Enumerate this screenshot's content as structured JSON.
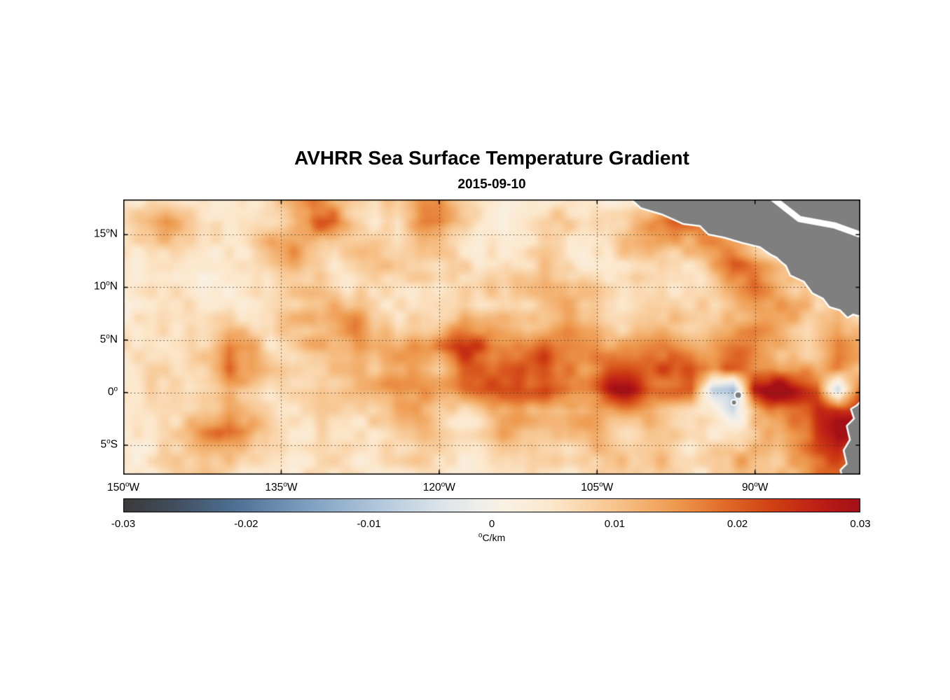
{
  "chart_data": {
    "type": "heatmap",
    "title": "AVHRR Sea Surface Temperature Gradient",
    "subtitle": "2015-09-10",
    "deg_sup": "o",
    "lon_range": [
      -150,
      -80
    ],
    "lat_range": [
      -7.8,
      18.35
    ],
    "xticks": [
      {
        "lon": -150,
        "num": "150",
        "dir": "W"
      },
      {
        "lon": -135,
        "num": "135",
        "dir": "W"
      },
      {
        "lon": -120,
        "num": "120",
        "dir": "W"
      },
      {
        "lon": -105,
        "num": "105",
        "dir": "W"
      },
      {
        "lon": -90,
        "num": "90",
        "dir": "W"
      }
    ],
    "yticks": [
      {
        "lat": 15,
        "num": "15",
        "dir": "N"
      },
      {
        "lat": 10,
        "num": "10",
        "dir": "N"
      },
      {
        "lat": 5,
        "num": "5",
        "dir": "N"
      },
      {
        "lat": 0,
        "num": "0",
        "dir": ""
      },
      {
        "lat": -5,
        "num": "5",
        "dir": "S"
      }
    ],
    "grid_lats": [
      15,
      10,
      5,
      0,
      -5
    ],
    "grid_lons": [
      -135,
      -120,
      -105,
      -90
    ],
    "colorbar": {
      "min": -0.03,
      "max": 0.03,
      "unit_sup": "o",
      "unit_text": "C/km",
      "ticks": [
        {
          "v": -0.03,
          "label": "-0.03"
        },
        {
          "v": -0.02,
          "label": "-0.02"
        },
        {
          "v": -0.01,
          "label": "-0.01"
        },
        {
          "v": 0,
          "label": "0"
        },
        {
          "v": 0.01,
          "label": "0.01"
        },
        {
          "v": 0.02,
          "label": "0.02"
        },
        {
          "v": 0.03,
          "label": "0.03"
        }
      ],
      "colormap": [
        {
          "v": -0.03,
          "c": "#3a3a3a"
        },
        {
          "v": -0.026,
          "c": "#414d5c"
        },
        {
          "v": -0.021,
          "c": "#4e6f93"
        },
        {
          "v": -0.015,
          "c": "#7f9fc0"
        },
        {
          "v": -0.009,
          "c": "#b3c9dd"
        },
        {
          "v": -0.004,
          "c": "#dde4e9"
        },
        {
          "v": -0.001,
          "c": "#efeeea"
        },
        {
          "v": 0.001,
          "c": "#f9f1e4"
        },
        {
          "v": 0.005,
          "c": "#fce7cb"
        },
        {
          "v": 0.01,
          "c": "#f7c48d"
        },
        {
          "v": 0.015,
          "c": "#ee9a4f"
        },
        {
          "v": 0.019,
          "c": "#e06a28"
        },
        {
          "v": 0.023,
          "c": "#cf3f14"
        },
        {
          "v": 0.027,
          "c": "#bb1c16"
        },
        {
          "v": 0.03,
          "c": "#a31016"
        }
      ]
    },
    "values_scale": 0.001,
    "grid": {
      "ncols": 36,
      "nrows": 14,
      "lon0": -150,
      "lon1": -80,
      "lat0": 18.35,
      "lat1": -7.8,
      "values": [
        [
          4,
          4,
          5,
          6,
          8,
          6,
          5,
          6,
          10,
          14,
          12,
          8,
          6,
          10,
          16,
          14,
          8,
          5,
          4,
          4,
          5,
          6,
          5,
          4,
          6,
          8,
          10,
          12,
          10,
          8,
          10,
          14,
          10,
          8,
          16,
          22
        ],
        [
          6,
          10,
          14,
          8,
          5,
          8,
          6,
          5,
          8,
          16,
          18,
          10,
          6,
          8,
          18,
          20,
          12,
          6,
          5,
          6,
          8,
          10,
          8,
          6,
          8,
          12,
          18,
          22,
          16,
          12,
          10,
          8,
          12,
          10,
          20,
          18
        ],
        [
          5,
          8,
          10,
          6,
          5,
          6,
          8,
          10,
          12,
          10,
          8,
          12,
          14,
          10,
          16,
          12,
          8,
          6,
          5,
          5,
          6,
          8,
          6,
          5,
          10,
          14,
          12,
          16,
          20,
          14,
          10,
          8,
          14,
          18,
          16,
          12
        ],
        [
          4,
          5,
          6,
          5,
          4,
          5,
          6,
          12,
          14,
          10,
          6,
          8,
          10,
          8,
          10,
          8,
          6,
          5,
          4,
          6,
          10,
          8,
          5,
          4,
          6,
          10,
          8,
          10,
          14,
          18,
          14,
          10,
          8,
          12,
          20,
          10
        ],
        [
          4,
          5,
          8,
          6,
          4,
          4,
          5,
          8,
          10,
          8,
          5,
          6,
          8,
          6,
          6,
          5,
          6,
          8,
          6,
          8,
          12,
          16,
          14,
          6,
          5,
          8,
          6,
          8,
          10,
          12,
          16,
          12,
          8,
          10,
          16,
          8
        ],
        [
          5,
          6,
          6,
          8,
          6,
          5,
          6,
          6,
          8,
          10,
          12,
          8,
          6,
          5,
          8,
          10,
          8,
          6,
          8,
          6,
          8,
          10,
          8,
          6,
          8,
          10,
          8,
          6,
          8,
          10,
          12,
          10,
          12,
          8,
          10,
          6
        ],
        [
          6,
          8,
          6,
          6,
          8,
          10,
          8,
          6,
          10,
          12,
          10,
          14,
          10,
          8,
          12,
          14,
          16,
          14,
          10,
          8,
          10,
          12,
          10,
          8,
          10,
          12,
          10,
          8,
          10,
          12,
          14,
          12,
          10,
          8,
          12,
          8
        ],
        [
          8,
          10,
          8,
          6,
          10,
          22,
          18,
          8,
          10,
          12,
          14,
          18,
          16,
          14,
          18,
          20,
          22,
          20,
          18,
          16,
          18,
          16,
          14,
          12,
          14,
          16,
          18,
          16,
          14,
          16,
          18,
          16,
          12,
          10,
          14,
          10
        ],
        [
          6,
          8,
          10,
          8,
          12,
          20,
          16,
          10,
          8,
          10,
          12,
          14,
          12,
          16,
          14,
          12,
          16,
          18,
          20,
          22,
          20,
          18,
          16,
          18,
          20,
          22,
          24,
          22,
          18,
          16,
          14,
          18,
          16,
          14,
          18,
          12
        ],
        [
          5,
          6,
          8,
          6,
          8,
          10,
          8,
          6,
          8,
          10,
          12,
          14,
          16,
          18,
          16,
          14,
          18,
          22,
          24,
          22,
          24,
          26,
          24,
          26,
          28,
          26,
          24,
          22,
          -6,
          -10,
          24,
          28,
          26,
          22,
          -8,
          26
        ],
        [
          4,
          5,
          6,
          8,
          10,
          12,
          8,
          5,
          6,
          8,
          10,
          8,
          10,
          12,
          14,
          10,
          8,
          10,
          12,
          14,
          12,
          10,
          12,
          14,
          16,
          14,
          12,
          10,
          8,
          -6,
          10,
          16,
          20,
          26,
          28,
          30
        ],
        [
          4,
          5,
          8,
          10,
          14,
          16,
          12,
          6,
          5,
          6,
          8,
          6,
          6,
          8,
          10,
          8,
          6,
          8,
          10,
          8,
          10,
          8,
          10,
          12,
          10,
          12,
          10,
          8,
          6,
          8,
          12,
          14,
          18,
          24,
          30,
          26
        ],
        [
          4,
          4,
          6,
          8,
          10,
          12,
          8,
          5,
          4,
          5,
          6,
          5,
          5,
          6,
          8,
          6,
          5,
          6,
          8,
          6,
          8,
          6,
          8,
          10,
          8,
          10,
          8,
          6,
          8,
          10,
          12,
          10,
          14,
          20,
          26,
          22
        ],
        [
          4,
          4,
          5,
          6,
          8,
          6,
          5,
          4,
          4,
          5,
          5,
          4,
          4,
          5,
          6,
          5,
          4,
          5,
          6,
          5,
          6,
          5,
          6,
          8,
          6,
          8,
          6,
          5,
          6,
          8,
          10,
          8,
          12,
          16,
          20,
          18
        ]
      ]
    },
    "land": {
      "color": "#7f7f7f",
      "coast_color": "#ffffff",
      "polygons": [
        [
          [
            -101.7,
            18.4
          ],
          [
            -100.8,
            17.6
          ],
          [
            -98.8,
            17.0
          ],
          [
            -96.8,
            16.1
          ],
          [
            -95.2,
            15.9
          ],
          [
            -94.4,
            15.1
          ],
          [
            -92.9,
            14.8
          ],
          [
            -91.2,
            14.3
          ],
          [
            -89.5,
            13.9
          ],
          [
            -88.5,
            13.2
          ],
          [
            -87.9,
            12.9
          ],
          [
            -87.5,
            12.5
          ],
          [
            -87.0,
            12.1
          ],
          [
            -86.6,
            11.2
          ],
          [
            -85.3,
            10.6
          ],
          [
            -84.5,
            9.5
          ],
          [
            -83.5,
            9.0
          ],
          [
            -82.9,
            8.2
          ],
          [
            -81.9,
            7.9
          ],
          [
            -81.2,
            7.2
          ],
          [
            -80.7,
            7.5
          ],
          [
            -79.9,
            7.3
          ],
          [
            -79.5,
            8.0
          ],
          [
            -79.0,
            8.6
          ],
          [
            -78.3,
            8.3
          ],
          [
            -78.0,
            9.0
          ],
          [
            -78.0,
            19.0
          ],
          [
            -102.0,
            19.0
          ]
        ],
        [
          [
            -79.9,
            -0.9
          ],
          [
            -80.3,
            -1.3
          ],
          [
            -80.8,
            -1.6
          ],
          [
            -80.5,
            -2.5
          ],
          [
            -81.2,
            -3.2
          ],
          [
            -80.9,
            -4.5
          ],
          [
            -81.5,
            -5.5
          ],
          [
            -81.2,
            -6.8
          ],
          [
            -81.8,
            -7.4
          ],
          [
            -81.5,
            -8.3
          ],
          [
            -79.4,
            -8.3
          ],
          [
            -79.4,
            -0.9
          ]
        ]
      ],
      "coast_channel": [
        [
          -88.6,
          18.7
        ],
        [
          -85.8,
          16.5
        ],
        [
          -82.5,
          15.9
        ],
        [
          -79.4,
          14.8
        ]
      ],
      "islands": [
        {
          "lon": -91.6,
          "lat": -0.25,
          "r": 4
        },
        {
          "lon": -92.0,
          "lat": -0.95,
          "r": 3
        }
      ]
    }
  }
}
